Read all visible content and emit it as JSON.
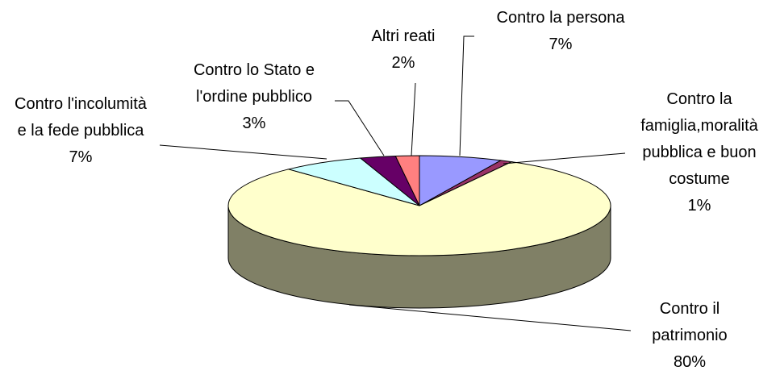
{
  "chart_data": {
    "type": "pie3d",
    "categories": [
      "Contro la persona",
      "Contro la famiglia,moralità pubblica e buon costume",
      "Contro il patrimonio",
      "Contro l'incolumità e la fede pubblica",
      "Contro lo Stato e l'ordine pubblico",
      "Altri reati"
    ],
    "values": [
      7,
      1,
      80,
      7,
      3,
      2
    ],
    "value_labels": [
      "7%",
      "1%",
      "80%",
      "7%",
      "3%",
      "2%"
    ],
    "colors": [
      "#9999ff",
      "#993366",
      "#ffffcc",
      "#ccffff",
      "#660066",
      "#ff8080"
    ]
  }
}
